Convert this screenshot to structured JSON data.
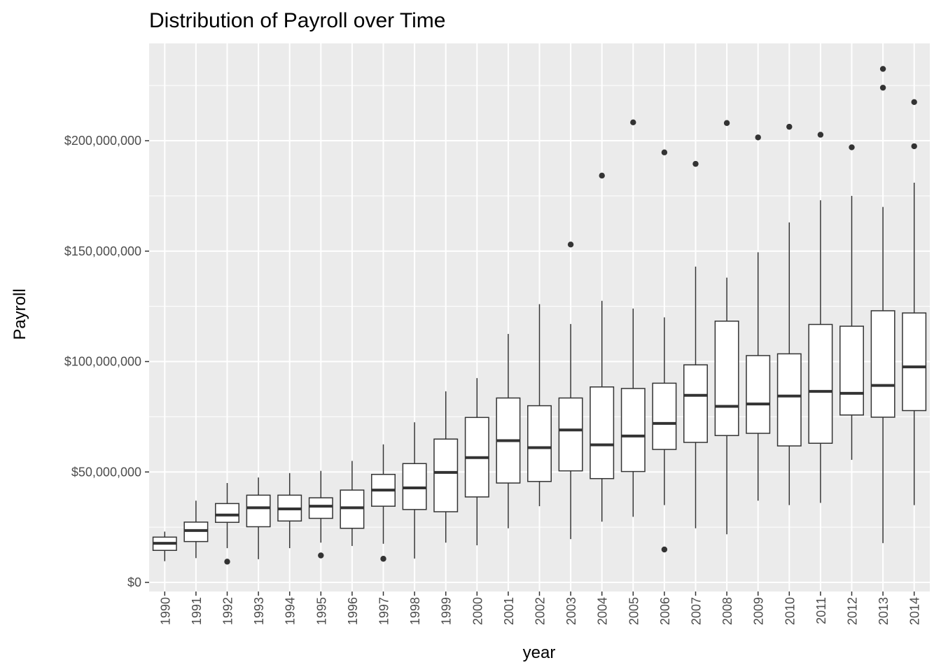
{
  "chart_data": {
    "type": "box",
    "title": "Distribution of Payroll over Time",
    "xlabel": "year",
    "ylabel": "Payroll",
    "ylim": [
      0,
      240000000
    ],
    "y_ticks": [
      0,
      50000000,
      100000000,
      150000000,
      200000000
    ],
    "y_tick_labels": [
      "$0",
      "$50,000,000",
      "$100,000,000",
      "$150,000,000",
      "$200,000,000"
    ],
    "grid": true,
    "colors": {
      "panel": "#ebebeb",
      "grid": "#ffffff",
      "box_fill": "#ffffff",
      "box_line": "#333333",
      "tick_text": "#4d4d4d"
    },
    "categories": [
      "1990",
      "1991",
      "1992",
      "1993",
      "1994",
      "1995",
      "1996",
      "1997",
      "1998",
      "1999",
      "2000",
      "2001",
      "2002",
      "2003",
      "2004",
      "2005",
      "2006",
      "2007",
      "2008",
      "2009",
      "2010",
      "2011",
      "2012",
      "2013",
      "2014"
    ],
    "boxes": [
      {
        "year": "1990",
        "min": 9600000,
        "q1": 14500000,
        "median": 17700000,
        "q3": 20500000,
        "max": 23000000,
        "outliers": []
      },
      {
        "year": "1991",
        "min": 11000000,
        "q1": 18500000,
        "median": 23500000,
        "q3": 27300000,
        "max": 37000000,
        "outliers": []
      },
      {
        "year": "1992",
        "min": 15500000,
        "q1": 27200000,
        "median": 30500000,
        "q3": 35700000,
        "max": 45000000,
        "outliers": [
          9400000
        ]
      },
      {
        "year": "1993",
        "min": 10500000,
        "q1": 25200000,
        "median": 33800000,
        "q3": 39500000,
        "max": 47500000,
        "outliers": []
      },
      {
        "year": "1994",
        "min": 15500000,
        "q1": 27800000,
        "median": 33300000,
        "q3": 39500000,
        "max": 49500000,
        "outliers": []
      },
      {
        "year": "1995",
        "min": 18000000,
        "q1": 29000000,
        "median": 34500000,
        "q3": 38300000,
        "max": 50500000,
        "outliers": [
          12200000
        ]
      },
      {
        "year": "1996",
        "min": 16500000,
        "q1": 24500000,
        "median": 33800000,
        "q3": 41800000,
        "max": 55000000,
        "outliers": []
      },
      {
        "year": "1997",
        "min": 17500000,
        "q1": 34500000,
        "median": 41800000,
        "q3": 48900000,
        "max": 62500000,
        "outliers": [
          10700000
        ]
      },
      {
        "year": "1998",
        "min": 10800000,
        "q1": 33000000,
        "median": 42800000,
        "q3": 53800000,
        "max": 72500000,
        "outliers": []
      },
      {
        "year": "1999",
        "min": 18000000,
        "q1": 32000000,
        "median": 49800000,
        "q3": 64900000,
        "max": 86500000,
        "outliers": []
      },
      {
        "year": "2000",
        "min": 16800000,
        "q1": 38700000,
        "median": 56500000,
        "q3": 74700000,
        "max": 92500000,
        "outliers": []
      },
      {
        "year": "2001",
        "min": 24500000,
        "q1": 45000000,
        "median": 64200000,
        "q3": 83500000,
        "max": 112500000,
        "outliers": []
      },
      {
        "year": "2002",
        "min": 34500000,
        "q1": 45700000,
        "median": 61000000,
        "q3": 80000000,
        "max": 126000000,
        "outliers": []
      },
      {
        "year": "2003",
        "min": 19600000,
        "q1": 50500000,
        "median": 69000000,
        "q3": 83500000,
        "max": 117000000,
        "outliers": [
          153000000
        ]
      },
      {
        "year": "2004",
        "min": 27500000,
        "q1": 47000000,
        "median": 62300000,
        "q3": 88500000,
        "max": 127500000,
        "outliers": [
          184200000
        ]
      },
      {
        "year": "2005",
        "min": 29700000,
        "q1": 50200000,
        "median": 66300000,
        "q3": 87800000,
        "max": 124000000,
        "outliers": [
          208300000
        ]
      },
      {
        "year": "2006",
        "min": 35000000,
        "q1": 60200000,
        "median": 72000000,
        "q3": 90200000,
        "max": 120000000,
        "outliers": [
          14900000,
          194700000
        ]
      },
      {
        "year": "2007",
        "min": 24500000,
        "q1": 63400000,
        "median": 84700000,
        "q3": 98500000,
        "max": 143000000,
        "outliers": [
          189500000
        ]
      },
      {
        "year": "2008",
        "min": 21800000,
        "q1": 66500000,
        "median": 79700000,
        "q3": 118300000,
        "max": 138000000,
        "outliers": [
          208000000
        ]
      },
      {
        "year": "2009",
        "min": 37000000,
        "q1": 67500000,
        "median": 80800000,
        "q3": 102700000,
        "max": 149500000,
        "outliers": [
          201500000
        ]
      },
      {
        "year": "2010",
        "min": 35000000,
        "q1": 61800000,
        "median": 84400000,
        "q3": 103500000,
        "max": 163000000,
        "outliers": [
          206300000
        ]
      },
      {
        "year": "2011",
        "min": 36000000,
        "q1": 63000000,
        "median": 86500000,
        "q3": 116800000,
        "max": 173000000,
        "outliers": [
          202700000
        ]
      },
      {
        "year": "2012",
        "min": 55500000,
        "q1": 75800000,
        "median": 85600000,
        "q3": 116000000,
        "max": 175000000,
        "outliers": [
          197000000
        ]
      },
      {
        "year": "2013",
        "min": 17800000,
        "q1": 74800000,
        "median": 89200000,
        "q3": 123000000,
        "max": 170000000,
        "outliers": [
          224000000,
          232500000
        ]
      },
      {
        "year": "2014",
        "min": 35000000,
        "q1": 77800000,
        "median": 97600000,
        "q3": 122000000,
        "max": 181000000,
        "outliers": [
          197500000,
          217500000
        ]
      }
    ]
  }
}
